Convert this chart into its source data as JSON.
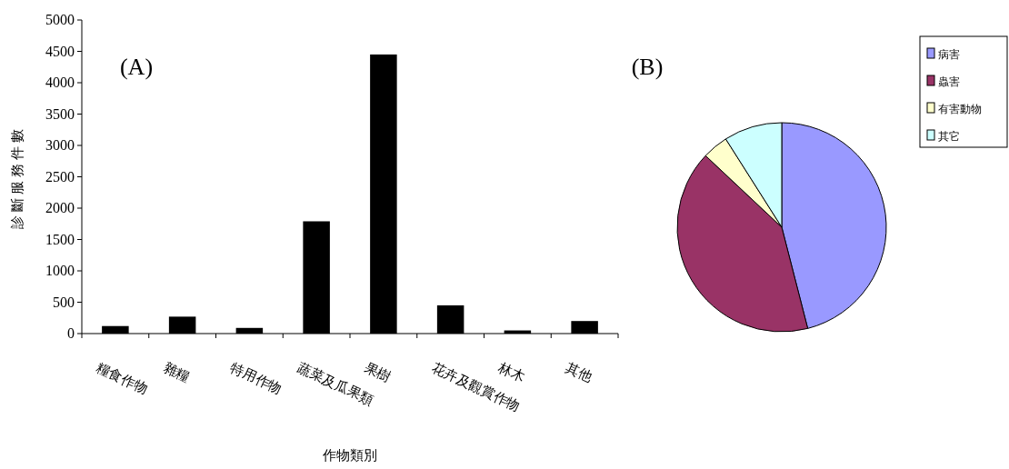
{
  "chart_data": [
    {
      "type": "bar",
      "title": "(A)",
      "xlabel": "作物類別",
      "ylabel": "診斷服務件數",
      "categories": [
        "糧食作物",
        "雜糧",
        "特用作物",
        "蔬菜及瓜果類",
        "果樹",
        "花卉及觀賞作物",
        "林木",
        "其他"
      ],
      "values": [
        120,
        270,
        90,
        1790,
        4450,
        450,
        50,
        200
      ],
      "color": "#000000",
      "ylim": [
        0,
        5000
      ],
      "yticks": [
        0,
        500,
        1000,
        1500,
        2000,
        2500,
        3000,
        3500,
        4000,
        4500,
        5000
      ],
      "grid": false
    },
    {
      "type": "pie",
      "title": "(B)",
      "categories": [
        "病害",
        "蟲害",
        "有害動物",
        "其它"
      ],
      "values": [
        46,
        41,
        4,
        9
      ],
      "colors": [
        "#9999ff",
        "#993366",
        "#ffffcc",
        "#ccffff"
      ],
      "legend": "top right"
    }
  ]
}
